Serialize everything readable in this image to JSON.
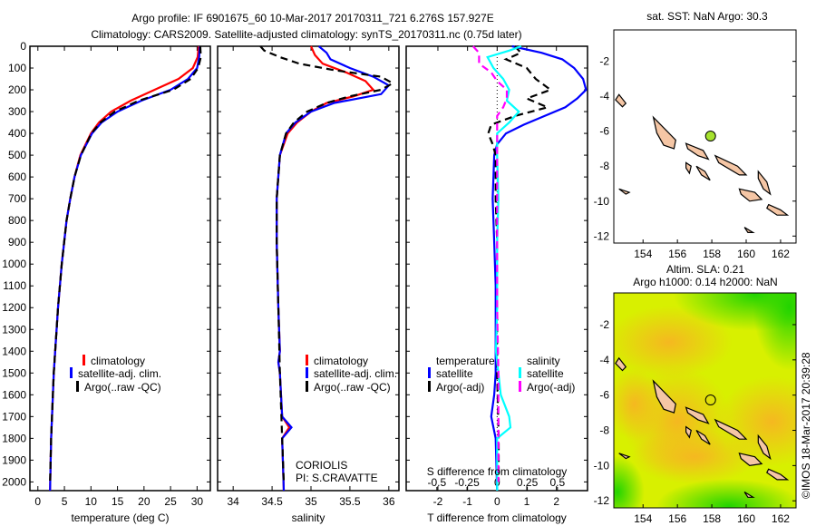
{
  "title_line1": "Argo profile: IF 6901675_60 10-Mar-2017 20170311_721 6.276S 157.927E",
  "title_line2": "Climatology: CARS2009. Satellite-adjusted climatology: synTS_20170311.nc (0.75d later)",
  "colors": {
    "climatology": "#ff0000",
    "satellite": "#0000ff",
    "argo": "#000000",
    "sal_satellite": "#00ffff",
    "sal_argo": "#ff00ff",
    "land": "#f5c6a5"
  },
  "chart_data": [
    {
      "type": "line",
      "id": "temperature",
      "xlabel": "temperature (deg C)",
      "ylabel": "",
      "xlim": [
        -1.5,
        32.5
      ],
      "ylim": [
        2040,
        0
      ],
      "xticks": [
        0,
        5,
        10,
        15,
        20,
        25,
        30
      ],
      "xtick_labels": [
        "0",
        "5",
        "10",
        "15",
        "20",
        "25",
        "30"
      ],
      "yticks": [
        0,
        100,
        200,
        300,
        400,
        500,
        600,
        700,
        800,
        900,
        1000,
        1100,
        1200,
        1300,
        1400,
        1500,
        1600,
        1700,
        1800,
        1900,
        2000
      ],
      "ytick_labels": [
        "0",
        "100",
        "200",
        "300",
        "400",
        "500",
        "600",
        "700",
        "800",
        "900",
        "1000",
        "1100",
        "1200",
        "1300",
        "1400",
        "1500",
        "1600",
        "1700",
        "1800",
        "1900",
        "2000"
      ],
      "legend": [
        "climatology",
        "satellite-adj. clim.",
        "Argo(..raw -QC)"
      ],
      "series": [
        {
          "name": "climatology",
          "style": "solid",
          "depth": [
            0,
            50,
            100,
            150,
            200,
            250,
            300,
            350,
            400,
            500,
            600,
            700,
            800,
            1000,
            1200,
            1500,
            1800,
            2040
          ],
          "values": [
            30.3,
            30.1,
            29.2,
            26.5,
            22,
            17.5,
            13.8,
            11.5,
            10,
            8,
            6.9,
            6.1,
            5.4,
            4.5,
            3.8,
            3,
            2.5,
            2.3
          ]
        },
        {
          "name": "satellite-adj. clim.",
          "style": "solid",
          "depth": [
            0,
            50,
            100,
            150,
            200,
            250,
            300,
            350,
            400,
            500,
            600,
            700,
            800,
            1000,
            1200,
            1500,
            1800,
            2040
          ],
          "values": [
            30.5,
            30.4,
            30,
            28.3,
            25,
            19.5,
            15,
            12,
            10.2,
            8.1,
            6.9,
            6.1,
            5.4,
            4.5,
            3.8,
            3,
            2.5,
            2.3
          ]
        },
        {
          "name": "Argo(..raw -QC)",
          "style": "dashed",
          "depth": [
            0,
            50,
            100,
            150,
            200,
            250,
            300,
            350,
            400,
            500,
            600,
            700,
            800,
            1000,
            1200,
            1500,
            1800,
            2000
          ],
          "values": [
            30.6,
            30.7,
            30.2,
            28.8,
            25.5,
            19,
            14.5,
            11.8,
            10.1,
            8.1,
            6.9,
            6.1,
            5.4,
            4.5,
            3.8,
            3,
            2.5,
            2.3
          ]
        }
      ]
    },
    {
      "type": "line",
      "id": "salinity",
      "xlabel": "salinity",
      "xlim": [
        33.8,
        36.13
      ],
      "ylim": [
        2040,
        0
      ],
      "xticks": [
        34,
        34.5,
        35,
        35.5,
        36
      ],
      "xtick_labels": [
        "34",
        "34.5",
        "35",
        "35.5",
        "36"
      ],
      "legend": [
        "climatology",
        "satellite-adj. clim.",
        "Argo(..raw -QC)"
      ],
      "annotation": [
        "CORIOLIS",
        "PI: S.CRAVATTE"
      ],
      "series": [
        {
          "name": "climatology",
          "style": "solid",
          "depth": [
            0,
            40,
            80,
            120,
            160,
            200,
            230,
            260,
            300,
            350,
            400,
            500,
            700,
            900,
            1200,
            1400,
            1450,
            1500,
            1700,
            1750,
            1800,
            2040
          ],
          "values": [
            35.0,
            35.05,
            35.15,
            35.45,
            35.7,
            35.8,
            35.55,
            35.2,
            35.0,
            34.82,
            34.7,
            34.6,
            34.56,
            34.56,
            34.58,
            34.6,
            34.58,
            34.6,
            34.63,
            34.72,
            34.63,
            34.65
          ]
        },
        {
          "name": "satellite-adj. clim.",
          "style": "solid",
          "depth": [
            0,
            30,
            60,
            100,
            140,
            180,
            220,
            260,
            300,
            350,
            400,
            500,
            700,
            900,
            1200,
            1400,
            1450,
            1500,
            1700,
            1750,
            1800,
            2040
          ],
          "values": [
            35.1,
            35.2,
            35.25,
            35.5,
            35.8,
            36.0,
            35.9,
            35.3,
            35.0,
            34.8,
            34.68,
            34.6,
            34.56,
            34.56,
            34.58,
            34.6,
            34.58,
            34.6,
            34.63,
            34.75,
            34.63,
            34.65
          ]
        },
        {
          "name": "Argo(..raw -QC)",
          "style": "dashed",
          "depth": [
            0,
            20,
            50,
            80,
            110,
            140,
            170,
            200,
            230,
            260,
            300,
            350,
            400,
            500,
            700,
            900,
            1200,
            1500,
            1800,
            2000
          ],
          "values": [
            34.35,
            34.4,
            34.6,
            34.85,
            35.3,
            35.9,
            36.05,
            35.9,
            35.5,
            35.2,
            34.95,
            34.78,
            34.68,
            34.6,
            34.56,
            34.56,
            34.58,
            34.6,
            34.63,
            34.65
          ]
        }
      ]
    },
    {
      "type": "line",
      "id": "difference",
      "xlabel": "T difference from climatology",
      "xlabel_top": "S difference from climatology",
      "xlim": [
        -3.07,
        3.05
      ],
      "ylim": [
        2040,
        0
      ],
      "xticks": [
        -2,
        -1,
        0,
        1,
        2
      ],
      "xtick_labels": [
        "-2",
        "-1",
        "0",
        "1",
        "2"
      ],
      "s_xticks": [
        -0.5,
        -0.25,
        0,
        0.25,
        0.5
      ],
      "s_xtick_labels": [
        "-0.5",
        "-0.25",
        "0",
        "0.25",
        "0.5"
      ],
      "legend_temperature_title": "temperature",
      "legend_salinity_title": "salinity",
      "legend": [
        "satellite",
        "Argo(-adj)",
        "satellite",
        "Argo(-adj)"
      ],
      "series": [
        {
          "name": "T satellite",
          "axis": "T",
          "style": "solid",
          "depth": [
            0,
            30,
            60,
            100,
            150,
            200,
            240,
            280,
            320,
            360,
            400,
            450,
            500,
            700,
            900,
            1100,
            1300,
            1500,
            1600,
            1700,
            1800,
            2040
          ],
          "values": [
            0.5,
            1.5,
            2.2,
            2.6,
            2.9,
            3.0,
            2.7,
            2.3,
            1.6,
            0.9,
            0.3,
            0,
            -0.1,
            -0.15,
            -0.1,
            -0.05,
            -0.05,
            -0.05,
            -0.1,
            -0.2,
            -0.05,
            0
          ]
        },
        {
          "name": "T Argo(-adj)",
          "axis": "T",
          "style": "dashed",
          "depth": [
            0,
            30,
            60,
            100,
            150,
            200,
            240,
            280,
            320,
            360,
            400,
            450,
            500,
            700,
            900,
            1100,
            1300,
            1500,
            1800,
            2000
          ],
          "values": [
            0.6,
            0.8,
            0.3,
            1.0,
            1.3,
            1.8,
            1.0,
            1.7,
            0.6,
            -0.2,
            -0.3,
            -0.15,
            -0.05,
            -0.05,
            0,
            0,
            0,
            0,
            0.05,
            0.05
          ]
        },
        {
          "name": "S satellite",
          "axis": "S",
          "style": "solid",
          "depth": [
            0,
            20,
            50,
            100,
            150,
            200,
            250,
            300,
            350,
            400,
            450,
            500,
            700,
            900,
            1200,
            1400,
            1500,
            1600,
            1700,
            1750,
            1800,
            2040
          ],
          "values": [
            0.2,
            0.1,
            -0.08,
            -0.03,
            0.05,
            0.1,
            0.08,
            0.18,
            0.1,
            0,
            0,
            0,
            0.01,
            0,
            0,
            -0.01,
            0.01,
            0.03,
            0.1,
            0.11,
            0.0,
            0
          ]
        },
        {
          "name": "S Argo(-adj)",
          "axis": "S",
          "style": "dashed",
          "depth": [
            0,
            30,
            80,
            120,
            160,
            200,
            240,
            280,
            320,
            360,
            400,
            500,
            700,
            900,
            1200,
            1500,
            1800,
            2000
          ],
          "values": [
            -0.2,
            -0.15,
            -0.15,
            -0.05,
            0.0,
            0.08,
            0.08,
            0.05,
            0.0,
            0.0,
            0.0,
            0.0,
            0.0,
            0.0,
            0.0,
            0.01,
            0.01,
            0.01
          ]
        }
      ]
    },
    {
      "type": "heatmap",
      "id": "sst-map",
      "title": "sat. SST: NaN Argo: 30.3",
      "xlim": [
        152.3,
        162.9
      ],
      "ylim": [
        -12.4,
        -0.2
      ],
      "xticks": [
        154,
        156,
        158,
        160,
        162
      ],
      "xtick_labels": [
        "154",
        "156",
        "158",
        "160",
        "162"
      ],
      "yticks": [
        -2,
        -4,
        -6,
        -8,
        -10,
        -12
      ],
      "ytick_labels": [
        "-2",
        "-4",
        "-6",
        "-8",
        "-10",
        "-12"
      ],
      "marker": {
        "lon": 157.927,
        "lat": -6.276,
        "color": "#a6e22e"
      }
    },
    {
      "type": "heatmap",
      "id": "sla-map",
      "title_line1": "Altim. SLA: 0.21",
      "title_line2": "Argo h1000: 0.14 h2000: NaN",
      "xlim": [
        152.3,
        162.9
      ],
      "ylim": [
        -12.4,
        -0.2
      ],
      "xticks": [
        154,
        156,
        158,
        160,
        162
      ],
      "xtick_labels": [
        "154",
        "156",
        "158",
        "160",
        "162"
      ],
      "yticks": [
        -2,
        -4,
        -6,
        -8,
        -10,
        -12
      ],
      "ytick_labels": [
        "-2",
        "-4",
        "-6",
        "-8",
        "-10",
        "-12"
      ],
      "marker": {
        "lon": 157.927,
        "lat": -6.276
      }
    }
  ],
  "credit": "©IMOS 18-Mar-2017 20:39:28"
}
